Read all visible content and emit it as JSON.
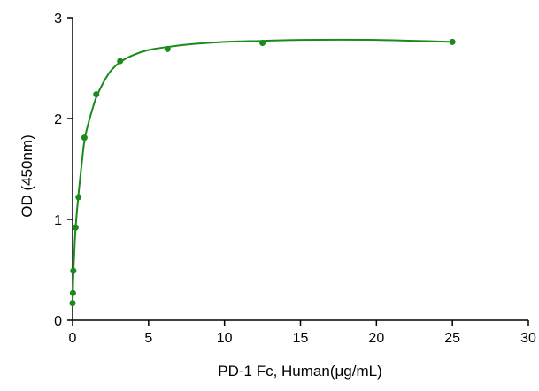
{
  "chart_data": {
    "type": "scatter",
    "title": "",
    "xlabel": "PD-1 Fc, Human(μg/mL)",
    "ylabel": "OD (450nm)",
    "xlim": [
      0,
      30
    ],
    "ylim": [
      0,
      3
    ],
    "xticks": [
      0,
      5,
      10,
      15,
      20,
      25,
      30
    ],
    "yticks": [
      0,
      1,
      2,
      3
    ],
    "grid": false,
    "series": [
      {
        "color": "#1a8a1a",
        "points": [
          {
            "x": 0.0,
            "y": 0.17
          },
          {
            "x": 0.024,
            "y": 0.27
          },
          {
            "x": 0.049,
            "y": 0.49
          },
          {
            "x": 0.2,
            "y": 0.92
          },
          {
            "x": 0.39,
            "y": 1.22
          },
          {
            "x": 0.78,
            "y": 1.81
          },
          {
            "x": 1.56,
            "y": 2.24
          },
          {
            "x": 3.13,
            "y": 2.57
          },
          {
            "x": 6.25,
            "y": 2.69
          },
          {
            "x": 12.5,
            "y": 2.75
          },
          {
            "x": 25.0,
            "y": 2.76
          }
        ],
        "fit_curve": {
          "points": [
            {
              "x": 0.0,
              "y": 0.17
            },
            {
              "x": 0.05,
              "y": 0.45
            },
            {
              "x": 0.1,
              "y": 0.63
            },
            {
              "x": 0.2,
              "y": 0.92
            },
            {
              "x": 0.39,
              "y": 1.25
            },
            {
              "x": 0.6,
              "y": 1.55
            },
            {
              "x": 0.78,
              "y": 1.78
            },
            {
              "x": 1.0,
              "y": 1.93
            },
            {
              "x": 1.3,
              "y": 2.09
            },
            {
              "x": 1.56,
              "y": 2.21
            },
            {
              "x": 2.0,
              "y": 2.35
            },
            {
              "x": 2.5,
              "y": 2.47
            },
            {
              "x": 3.13,
              "y": 2.56
            },
            {
              "x": 4.0,
              "y": 2.63
            },
            {
              "x": 5.0,
              "y": 2.68
            },
            {
              "x": 6.25,
              "y": 2.71
            },
            {
              "x": 8.0,
              "y": 2.74
            },
            {
              "x": 10.0,
              "y": 2.76
            },
            {
              "x": 12.5,
              "y": 2.77
            },
            {
              "x": 15.0,
              "y": 2.78
            },
            {
              "x": 20.0,
              "y": 2.78
            },
            {
              "x": 25.0,
              "y": 2.76
            }
          ]
        }
      }
    ]
  }
}
